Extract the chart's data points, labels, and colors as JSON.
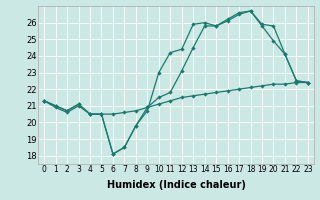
{
  "xlabel": "Humidex (Indice chaleur)",
  "background_color": "#cce8e5",
  "line_color": "#1a7a6e",
  "xlim": [
    -0.5,
    23.5
  ],
  "ylim": [
    17.5,
    27.0
  ],
  "yticks": [
    18,
    19,
    20,
    21,
    22,
    23,
    24,
    25,
    26
  ],
  "xticks": [
    0,
    1,
    2,
    3,
    4,
    5,
    6,
    7,
    8,
    9,
    10,
    11,
    12,
    13,
    14,
    15,
    16,
    17,
    18,
    19,
    20,
    21,
    22,
    23
  ],
  "line1_x": [
    0,
    1,
    2,
    3,
    4,
    5,
    6,
    7,
    8,
    9,
    10,
    11,
    12,
    13,
    14,
    15,
    16,
    17,
    18,
    19,
    20,
    21,
    22,
    23
  ],
  "line1_y": [
    21.3,
    21.0,
    20.7,
    21.1,
    20.5,
    20.5,
    18.1,
    18.5,
    19.8,
    20.7,
    23.0,
    24.2,
    24.4,
    25.9,
    26.0,
    25.8,
    26.2,
    26.6,
    26.7,
    25.8,
    24.9,
    24.1,
    22.5,
    22.4
  ],
  "line2_x": [
    0,
    1,
    2,
    3,
    4,
    5,
    6,
    7,
    8,
    9,
    10,
    11,
    12,
    13,
    14,
    15,
    16,
    17,
    18,
    19,
    20,
    21,
    22,
    23
  ],
  "line2_y": [
    21.3,
    21.0,
    20.7,
    21.1,
    20.5,
    20.5,
    18.1,
    18.5,
    19.8,
    20.9,
    21.5,
    21.8,
    23.1,
    24.5,
    25.8,
    25.8,
    26.1,
    26.5,
    26.7,
    25.9,
    25.8,
    24.1,
    22.5,
    22.4
  ],
  "line3_x": [
    0,
    1,
    2,
    3,
    4,
    5,
    6,
    7,
    8,
    9,
    10,
    11,
    12,
    13,
    14,
    15,
    16,
    17,
    18,
    19,
    20,
    21,
    22,
    23
  ],
  "line3_y": [
    21.3,
    20.9,
    20.6,
    21.0,
    20.5,
    20.5,
    20.5,
    20.6,
    20.7,
    20.9,
    21.1,
    21.3,
    21.5,
    21.6,
    21.7,
    21.8,
    21.9,
    22.0,
    22.1,
    22.2,
    22.3,
    22.3,
    22.4,
    22.4
  ],
  "xlabel_fontsize": 7,
  "tick_fontsize": 5.5,
  "ytick_fontsize": 6,
  "linewidth": 0.9,
  "markersize": 2.2
}
